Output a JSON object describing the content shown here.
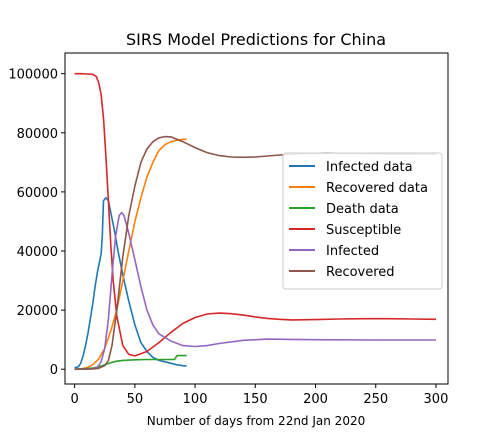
{
  "chart_data": {
    "type": "line",
    "title": "SIRS Model Predictions for China",
    "xlabel": "Number of days from 22nd Jan 2020",
    "ylabel": "",
    "xlim": [
      -8,
      310
    ],
    "ylim": [
      -5000,
      107000
    ],
    "xticks": [
      0,
      50,
      100,
      150,
      200,
      250,
      300
    ],
    "yticks": [
      0,
      20000,
      40000,
      60000,
      80000,
      100000
    ],
    "legend_position": "center-right",
    "grid": false,
    "series": [
      {
        "name": "Infected data",
        "color": "#1f77b4",
        "points": [
          [
            0,
            500
          ],
          [
            3,
            800
          ],
          [
            5,
            2000
          ],
          [
            7,
            4500
          ],
          [
            9,
            8000
          ],
          [
            11,
            12000
          ],
          [
            13,
            17000
          ],
          [
            15,
            22000
          ],
          [
            17,
            28000
          ],
          [
            19,
            33000
          ],
          [
            21,
            37000
          ],
          [
            22,
            39000
          ],
          [
            23,
            45000
          ],
          [
            24,
            57000
          ],
          [
            26,
            58000
          ],
          [
            28,
            57000
          ],
          [
            30,
            53000
          ],
          [
            33,
            47000
          ],
          [
            36,
            40000
          ],
          [
            40,
            32000
          ],
          [
            45,
            23000
          ],
          [
            50,
            15000
          ],
          [
            55,
            9000
          ],
          [
            60,
            6000
          ],
          [
            65,
            4000
          ],
          [
            70,
            3000
          ],
          [
            75,
            2500
          ],
          [
            80,
            2000
          ],
          [
            85,
            1500
          ],
          [
            90,
            1200
          ],
          [
            93,
            1100
          ]
        ]
      },
      {
        "name": "Recovered data",
        "color": "#ff7f0e",
        "points": [
          [
            0,
            0
          ],
          [
            5,
            100
          ],
          [
            10,
            500
          ],
          [
            15,
            1500
          ],
          [
            20,
            3500
          ],
          [
            25,
            7000
          ],
          [
            30,
            13000
          ],
          [
            35,
            20000
          ],
          [
            40,
            30000
          ],
          [
            45,
            40000
          ],
          [
            50,
            50000
          ],
          [
            55,
            58000
          ],
          [
            60,
            65000
          ],
          [
            65,
            70000
          ],
          [
            70,
            74000
          ],
          [
            75,
            76000
          ],
          [
            80,
            77000
          ],
          [
            85,
            77500
          ],
          [
            90,
            77800
          ],
          [
            93,
            77800
          ]
        ]
      },
      {
        "name": "Death data",
        "color": "#2ca02c",
        "points": [
          [
            0,
            0
          ],
          [
            10,
            200
          ],
          [
            15,
            400
          ],
          [
            20,
            800
          ],
          [
            25,
            1500
          ],
          [
            30,
            2200
          ],
          [
            35,
            2700
          ],
          [
            40,
            3000
          ],
          [
            50,
            3200
          ],
          [
            60,
            3300
          ],
          [
            70,
            3300
          ],
          [
            83,
            3300
          ],
          [
            85,
            4600
          ],
          [
            93,
            4600
          ]
        ]
      },
      {
        "name": "Susceptible",
        "color": "#d62728",
        "points": [
          [
            0,
            100000
          ],
          [
            5,
            100000
          ],
          [
            10,
            99900
          ],
          [
            15,
            99800
          ],
          [
            18,
            99000
          ],
          [
            20,
            97000
          ],
          [
            22,
            93000
          ],
          [
            24,
            85000
          ],
          [
            26,
            72000
          ],
          [
            28,
            57000
          ],
          [
            30,
            42000
          ],
          [
            32,
            30000
          ],
          [
            35,
            18000
          ],
          [
            40,
            8000
          ],
          [
            45,
            5000
          ],
          [
            50,
            4500
          ],
          [
            60,
            6000
          ],
          [
            70,
            9000
          ],
          [
            80,
            12500
          ],
          [
            90,
            15500
          ],
          [
            100,
            17500
          ],
          [
            110,
            18700
          ],
          [
            120,
            19000
          ],
          [
            130,
            18800
          ],
          [
            140,
            18300
          ],
          [
            150,
            17700
          ],
          [
            160,
            17200
          ],
          [
            170,
            16900
          ],
          [
            180,
            16700
          ],
          [
            200,
            16800
          ],
          [
            220,
            17000
          ],
          [
            240,
            17100
          ],
          [
            260,
            17100
          ],
          [
            280,
            17000
          ],
          [
            300,
            16900
          ]
        ]
      },
      {
        "name": "Infected",
        "color": "#9467bd",
        "points": [
          [
            0,
            0
          ],
          [
            10,
            50
          ],
          [
            15,
            150
          ],
          [
            18,
            500
          ],
          [
            20,
            1200
          ],
          [
            22,
            2500
          ],
          [
            25,
            7000
          ],
          [
            28,
            17000
          ],
          [
            31,
            32000
          ],
          [
            34,
            45000
          ],
          [
            37,
            52000
          ],
          [
            39,
            53000
          ],
          [
            41,
            52000
          ],
          [
            45,
            46000
          ],
          [
            50,
            37000
          ],
          [
            55,
            28000
          ],
          [
            60,
            20000
          ],
          [
            65,
            15000
          ],
          [
            70,
            12000
          ],
          [
            80,
            9500
          ],
          [
            90,
            8000
          ],
          [
            100,
            7700
          ],
          [
            110,
            8000
          ],
          [
            120,
            8700
          ],
          [
            140,
            9800
          ],
          [
            160,
            10200
          ],
          [
            180,
            10100
          ],
          [
            200,
            10000
          ],
          [
            250,
            9900
          ],
          [
            300,
            9900
          ]
        ]
      },
      {
        "name": "Recovered",
        "color": "#8c564b",
        "points": [
          [
            0,
            0
          ],
          [
            15,
            100
          ],
          [
            20,
            300
          ],
          [
            25,
            1200
          ],
          [
            28,
            3000
          ],
          [
            31,
            8000
          ],
          [
            35,
            20000
          ],
          [
            40,
            38000
          ],
          [
            45,
            52000
          ],
          [
            50,
            62000
          ],
          [
            55,
            70000
          ],
          [
            60,
            74500
          ],
          [
            65,
            77000
          ],
          [
            70,
            78300
          ],
          [
            75,
            78700
          ],
          [
            80,
            78600
          ],
          [
            90,
            77000
          ],
          [
            100,
            75000
          ],
          [
            110,
            73300
          ],
          [
            120,
            72300
          ],
          [
            130,
            71800
          ],
          [
            140,
            71700
          ],
          [
            150,
            71800
          ],
          [
            170,
            72500
          ],
          [
            190,
            73000
          ],
          [
            210,
            73100
          ],
          [
            230,
            73000
          ],
          [
            260,
            72900
          ],
          [
            300,
            72800
          ]
        ]
      }
    ]
  }
}
